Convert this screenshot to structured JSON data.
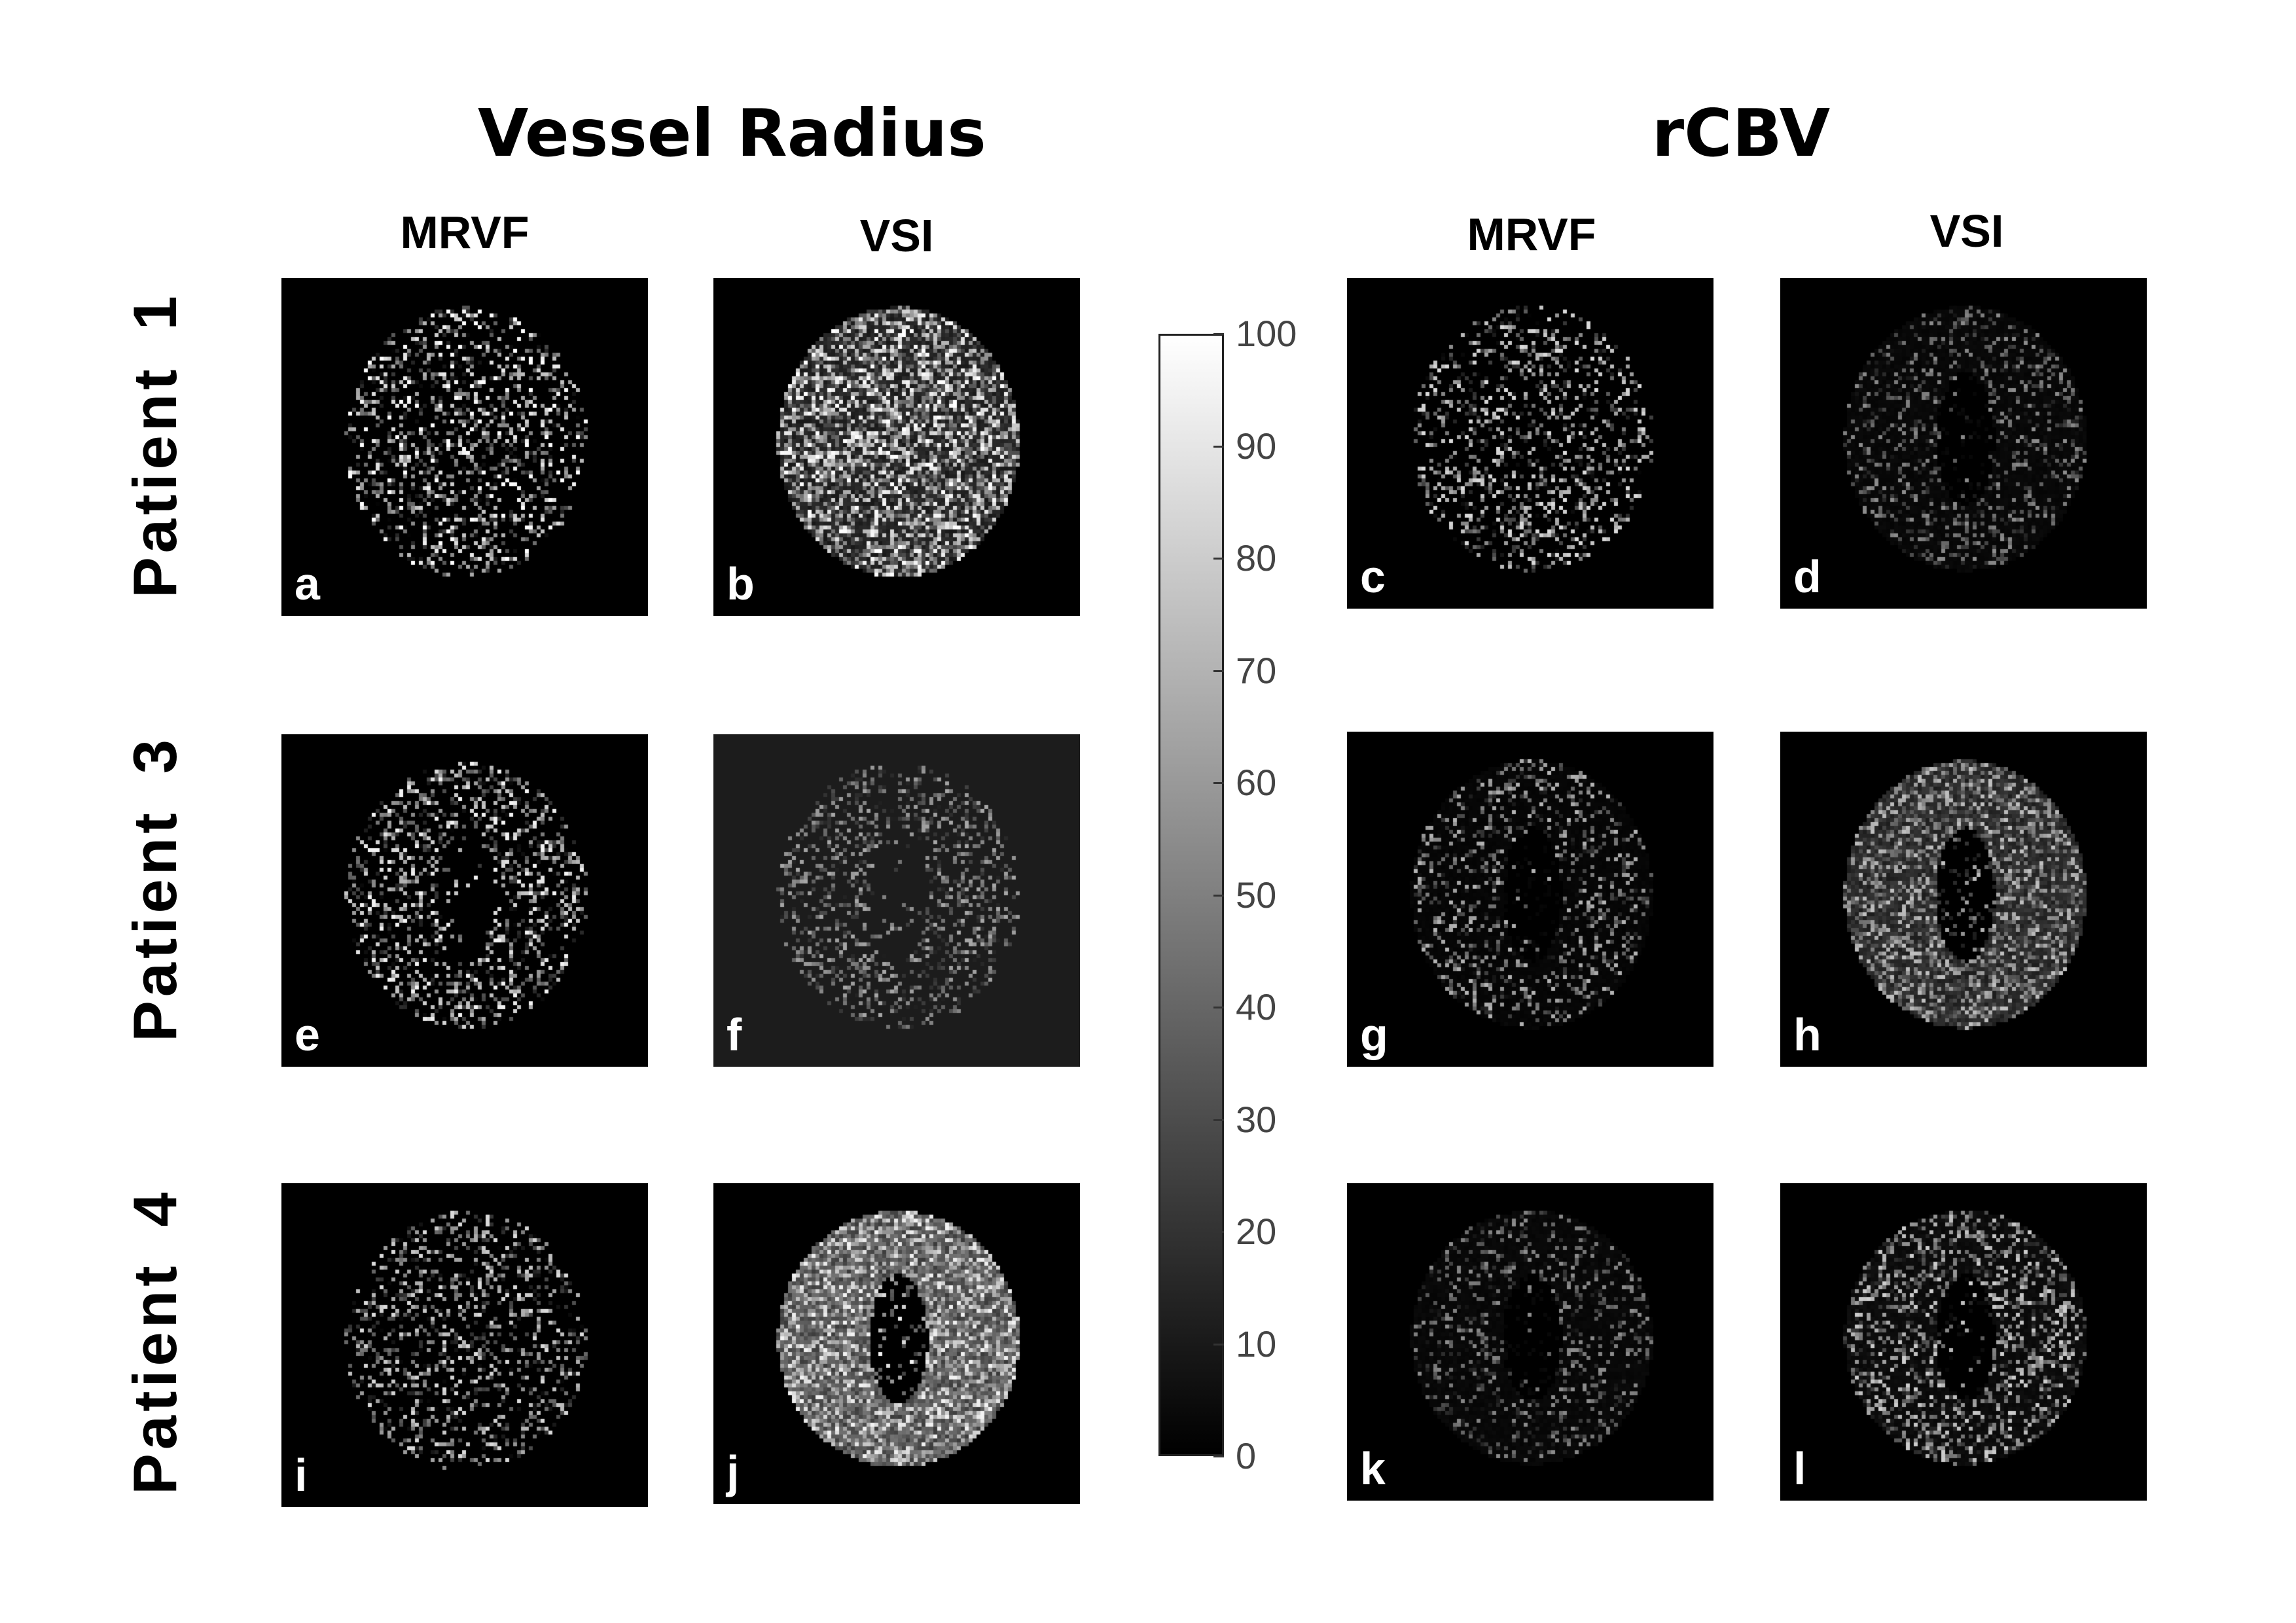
{
  "groups": [
    {
      "title": "Vessel Radius"
    },
    {
      "title": "rCBV"
    }
  ],
  "columns": [
    "MRVF",
    "VSI",
    "MRVF",
    "VSI"
  ],
  "rows": [
    "Patient  1",
    "Patient  3",
    "Patient  4"
  ],
  "panels": [
    {
      "letter": "a",
      "texture": "sparse-bright"
    },
    {
      "letter": "b",
      "texture": "dense-bright"
    },
    {
      "letter": "c",
      "texture": "sparse"
    },
    {
      "letter": "d",
      "texture": "faint"
    },
    {
      "letter": "e",
      "texture": "sparse-ventricle"
    },
    {
      "letter": "f",
      "texture": "dim-ventricle-graybg"
    },
    {
      "letter": "g",
      "texture": "faint-ventricle"
    },
    {
      "letter": "h",
      "texture": "dense-ventricle"
    },
    {
      "letter": "i",
      "texture": "sparse"
    },
    {
      "letter": "j",
      "texture": "very-dense-ventricle"
    },
    {
      "letter": "k",
      "texture": "faint"
    },
    {
      "letter": "l",
      "texture": "medium"
    }
  ],
  "colorbar": {
    "min": 0,
    "max": 100,
    "ticks": [
      "0",
      "10",
      "20",
      "30",
      "40",
      "50",
      "60",
      "70",
      "80",
      "90",
      "100"
    ],
    "colors": {
      "top": "#ffffff",
      "bottom": "#000000"
    }
  }
}
